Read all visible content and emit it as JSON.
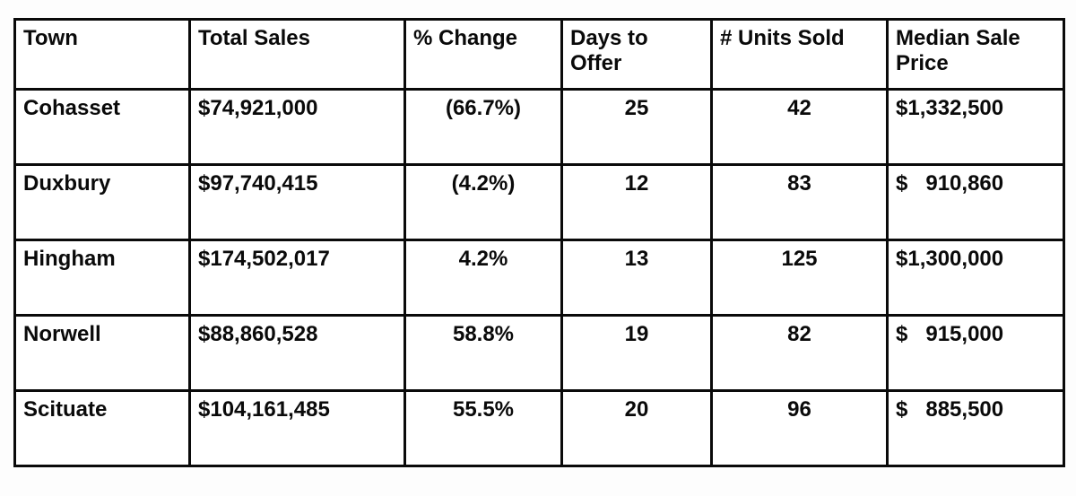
{
  "table": {
    "headers": [
      "Town",
      "Total Sales",
      "% Change",
      "Days to Offer",
      "# Units Sold",
      "Median Sale Price"
    ],
    "rows": [
      {
        "town": "Cohasset",
        "total_sales": "$74,921,000",
        "pct_change": "(66.7%)",
        "days_to_offer": "25",
        "units_sold": "42",
        "median_sale_price": "$1,332,500"
      },
      {
        "town": "Duxbury",
        "total_sales": "$97,740,415",
        "pct_change": "(4.2%)",
        "days_to_offer": "12",
        "units_sold": "83",
        "median_sale_price": "$   910,860"
      },
      {
        "town": "Hingham",
        "total_sales": "$174,502,017",
        "pct_change": "4.2%",
        "days_to_offer": "13",
        "units_sold": "125",
        "median_sale_price": "$1,300,000"
      },
      {
        "town": "Norwell",
        "total_sales": "$88,860,528",
        "pct_change": "58.8%",
        "days_to_offer": "19",
        "units_sold": "82",
        "median_sale_price": "$   915,000"
      },
      {
        "town": "Scituate",
        "total_sales": "$104,161,485",
        "pct_change": "55.5%",
        "days_to_offer": "20",
        "units_sold": "96",
        "median_sale_price": "$   885,500"
      }
    ]
  },
  "chart_data": {
    "type": "table",
    "title": "",
    "columns": [
      "Town",
      "Total Sales",
      "% Change",
      "Days to Offer",
      "# Units Sold",
      "Median Sale Price"
    ],
    "rows": [
      [
        "Cohasset",
        74921000,
        -66.7,
        25,
        42,
        1332500
      ],
      [
        "Duxbury",
        97740415,
        -4.2,
        12,
        83,
        910860
      ],
      [
        "Hingham",
        174502017,
        4.2,
        13,
        125,
        1300000
      ],
      [
        "Norwell",
        88860528,
        58.8,
        19,
        82,
        915000
      ],
      [
        "Scituate",
        104161485,
        55.5,
        20,
        96,
        885500
      ]
    ]
  }
}
